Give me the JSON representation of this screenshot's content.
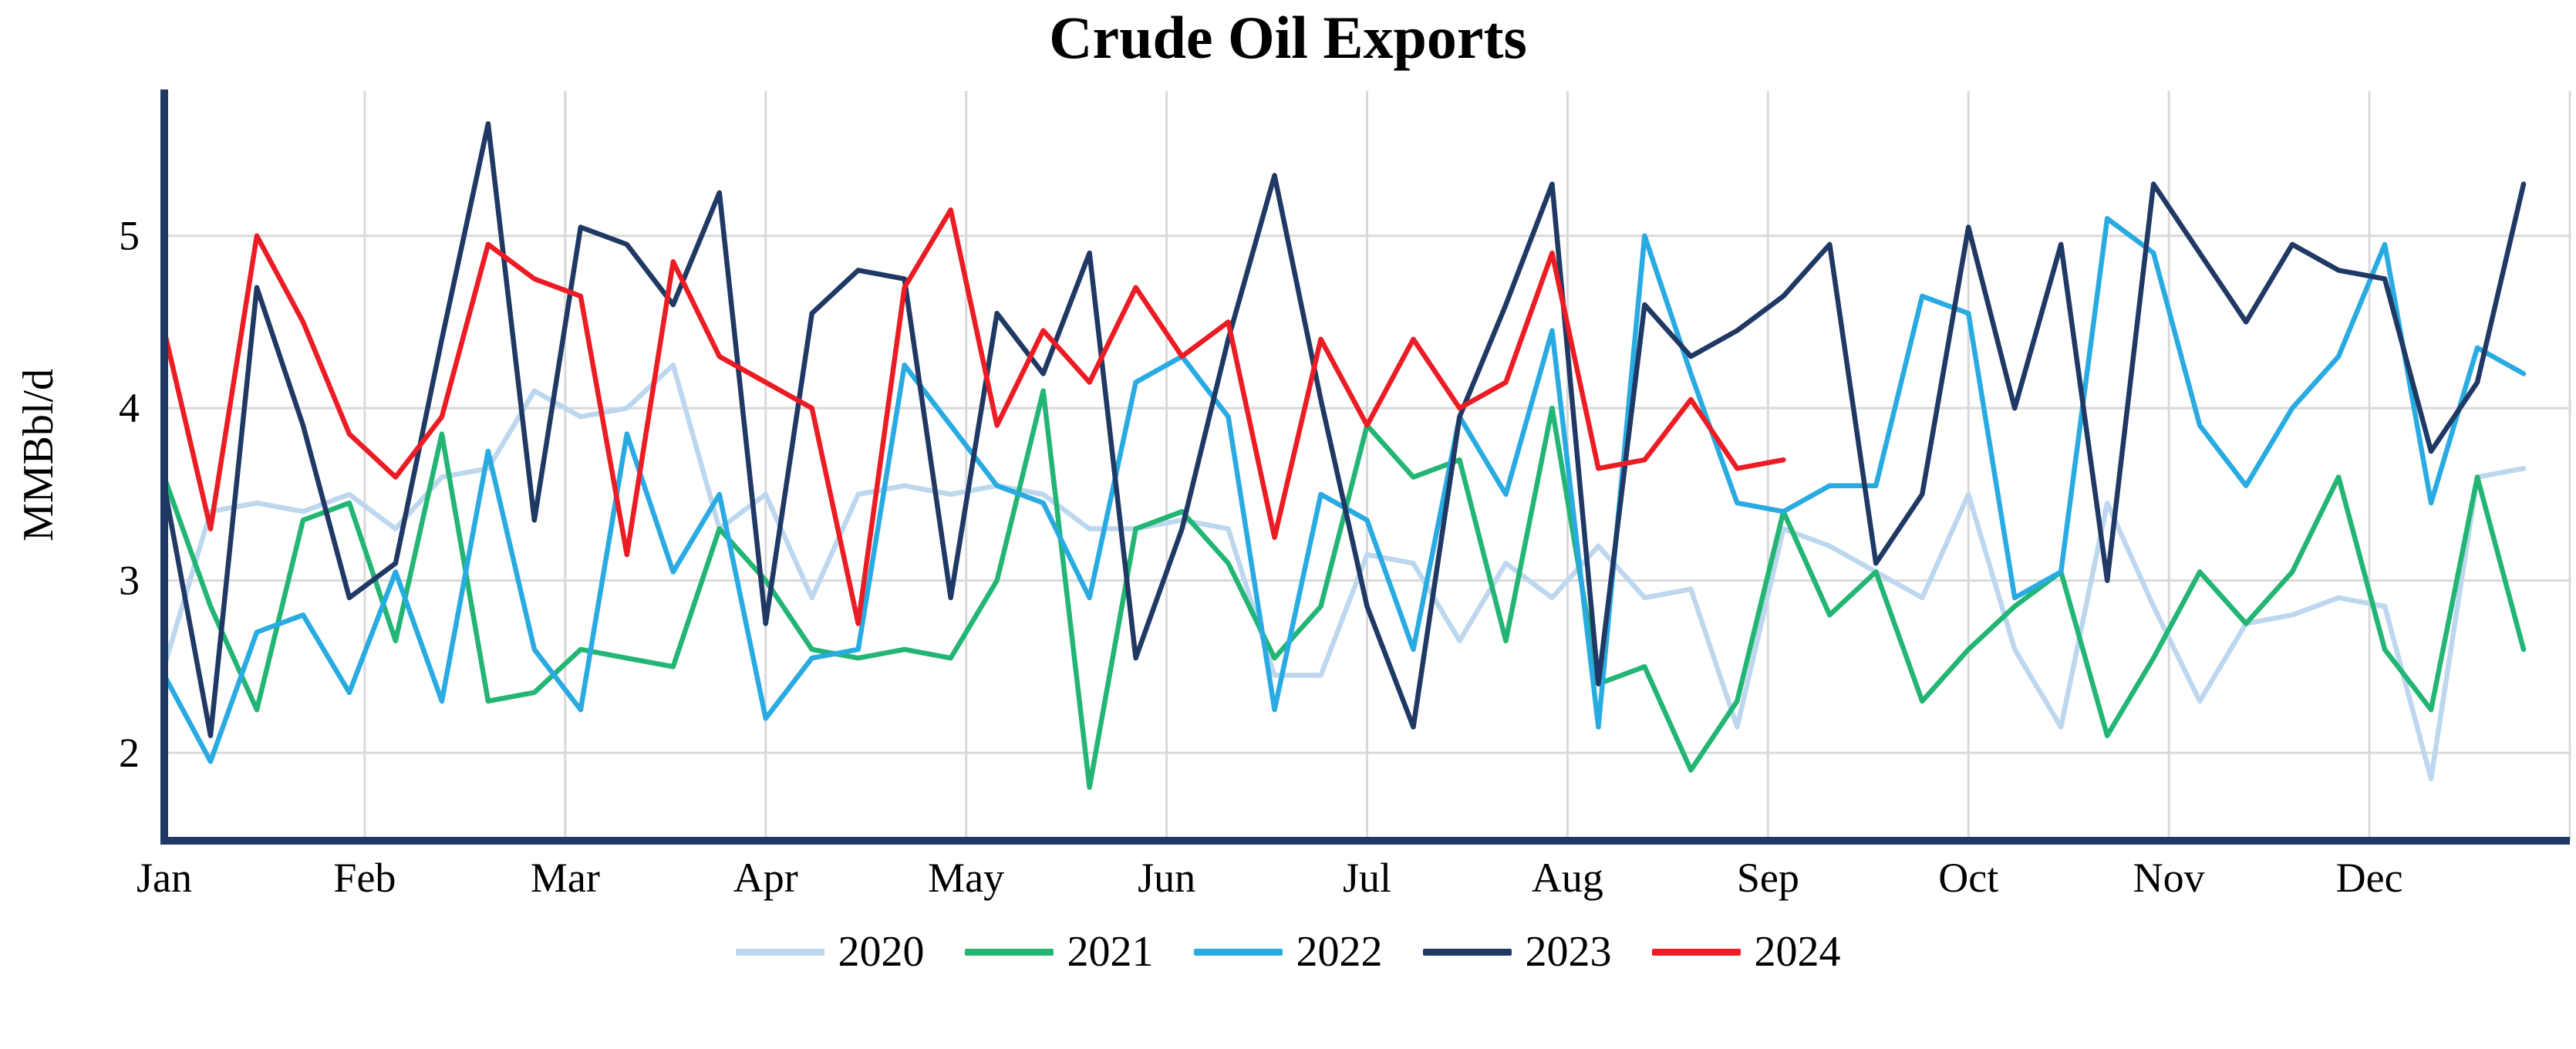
{
  "title": "Crude Oil Exports",
  "ylabel": "MMBbl/d",
  "chart_data": {
    "type": "line",
    "title": "Crude Oil Exports",
    "ylabel": "MMBbl/d",
    "xlabel": "",
    "x_unit": "week of year",
    "x_tick_labels": [
      "Jan",
      "Feb",
      "Mar",
      "Apr",
      "May",
      "Jun",
      "Jul",
      "Aug",
      "Sep",
      "Oct",
      "Nov",
      "Dec"
    ],
    "y_ticks": [
      2,
      3,
      4,
      5
    ],
    "ylim": [
      1.49,
      5.84
    ],
    "grid": true,
    "legend_position": "bottom",
    "axis_color": "#1F3864",
    "grid_color": "#D9D9D9",
    "series": [
      {
        "name": "2020",
        "color": "#BDD7EE",
        "values": [
          2.5,
          3.4,
          3.45,
          3.4,
          3.5,
          3.3,
          3.6,
          3.65,
          4.1,
          3.95,
          4.0,
          4.25,
          3.3,
          3.5,
          2.9,
          3.5,
          3.55,
          3.5,
          3.55,
          3.5,
          3.3,
          3.3,
          3.35,
          3.3,
          2.45,
          2.45,
          3.15,
          3.1,
          2.65,
          3.1,
          2.9,
          3.2,
          2.9,
          2.95,
          2.15,
          3.3,
          3.2,
          3.05,
          2.9,
          3.5,
          2.6,
          2.15,
          3.45,
          2.85,
          2.3,
          2.75,
          2.8,
          2.9,
          2.85,
          1.85,
          3.6,
          3.65
        ]
      },
      {
        "name": "2021",
        "color": "#22B573",
        "values": [
          3.6,
          2.85,
          2.25,
          3.35,
          3.45,
          2.65,
          3.85,
          2.3,
          2.35,
          2.6,
          2.55,
          2.5,
          3.3,
          3.0,
          2.6,
          2.55,
          2.6,
          2.55,
          3.0,
          4.1,
          1.8,
          3.3,
          3.4,
          3.1,
          2.55,
          2.85,
          3.9,
          3.6,
          3.7,
          2.65,
          4.0,
          2.4,
          2.5,
          1.9,
          2.3,
          3.4,
          2.8,
          3.05,
          2.3,
          2.6,
          2.85,
          3.05,
          2.1,
          2.55,
          3.05,
          2.75,
          3.05,
          3.6,
          2.6,
          2.25,
          3.6,
          2.6
        ]
      },
      {
        "name": "2022",
        "color": "#29ABE2",
        "values": [
          2.45,
          1.95,
          2.7,
          2.8,
          2.35,
          3.05,
          2.3,
          3.75,
          2.6,
          2.25,
          3.85,
          3.05,
          3.5,
          2.2,
          2.55,
          2.6,
          4.25,
          3.9,
          3.55,
          3.45,
          2.9,
          4.15,
          4.3,
          3.95,
          2.25,
          3.5,
          3.35,
          2.6,
          3.95,
          3.5,
          4.45,
          2.15,
          5.0,
          4.2,
          3.45,
          3.4,
          3.55,
          3.55,
          4.65,
          4.55,
          2.9,
          3.05,
          5.1,
          4.9,
          3.9,
          3.55,
          4.0,
          4.3,
          4.95,
          3.45,
          4.35,
          4.2
        ]
      },
      {
        "name": "2023",
        "color": "#1F3864",
        "values": [
          3.55,
          2.1,
          4.7,
          3.9,
          2.9,
          3.1,
          4.4,
          5.65,
          3.35,
          5.05,
          4.95,
          4.6,
          5.25,
          2.75,
          4.55,
          4.8,
          4.75,
          2.9,
          4.55,
          4.2,
          4.9,
          2.55,
          3.3,
          4.4,
          5.35,
          4.05,
          2.85,
          2.15,
          3.95,
          4.6,
          5.3,
          2.4,
          4.6,
          4.3,
          4.45,
          4.65,
          4.95,
          3.1,
          3.5,
          5.05,
          4.0,
          4.95,
          3.0,
          5.3,
          4.9,
          4.5,
          4.95,
          4.8,
          4.75,
          3.75,
          4.15,
          5.3
        ]
      },
      {
        "name": "2024",
        "color": "#EC1C24",
        "values": [
          4.45,
          3.3,
          5.0,
          4.5,
          3.85,
          3.6,
          3.95,
          4.95,
          4.75,
          4.65,
          3.15,
          4.85,
          4.3,
          4.15,
          4.0,
          2.75,
          4.7,
          5.15,
          3.9,
          4.45,
          4.15,
          4.7,
          4.3,
          4.5,
          3.25,
          4.4,
          3.9,
          4.4,
          4.0,
          4.15,
          4.9,
          3.65,
          3.7,
          4.05,
          3.65,
          3.7
        ]
      }
    ]
  }
}
